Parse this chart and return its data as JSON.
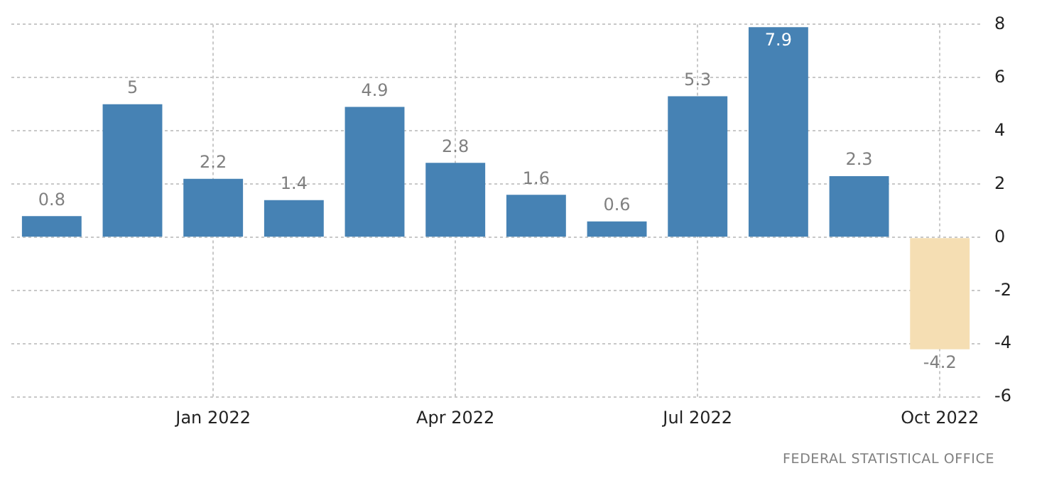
{
  "chart_data": {
    "type": "bar",
    "categories": [
      null,
      null,
      "Jan 2022",
      null,
      null,
      "Apr 2022",
      null,
      null,
      "Jul 2022",
      null,
      null,
      "Oct 2022"
    ],
    "values": [
      0.8,
      5,
      2.2,
      1.4,
      4.9,
      2.8,
      1.6,
      0.6,
      5.3,
      7.9,
      2.3,
      -4.2
    ],
    "colors": [
      "#4682b4",
      "#4682b4",
      "#4682b4",
      "#4682b4",
      "#4682b4",
      "#4682b4",
      "#4682b4",
      "#4682b4",
      "#4682b4",
      "#4682b4",
      "#4682b4",
      "#f5deb3"
    ],
    "ylim": [
      -6,
      8
    ],
    "yticks": [
      -6,
      -4,
      -2,
      0,
      2,
      4,
      6,
      8
    ],
    "grid": true,
    "legend": false,
    "data_labels": true,
    "annotations": [
      "FEDERAL STATISTICAL OFFICE"
    ]
  }
}
